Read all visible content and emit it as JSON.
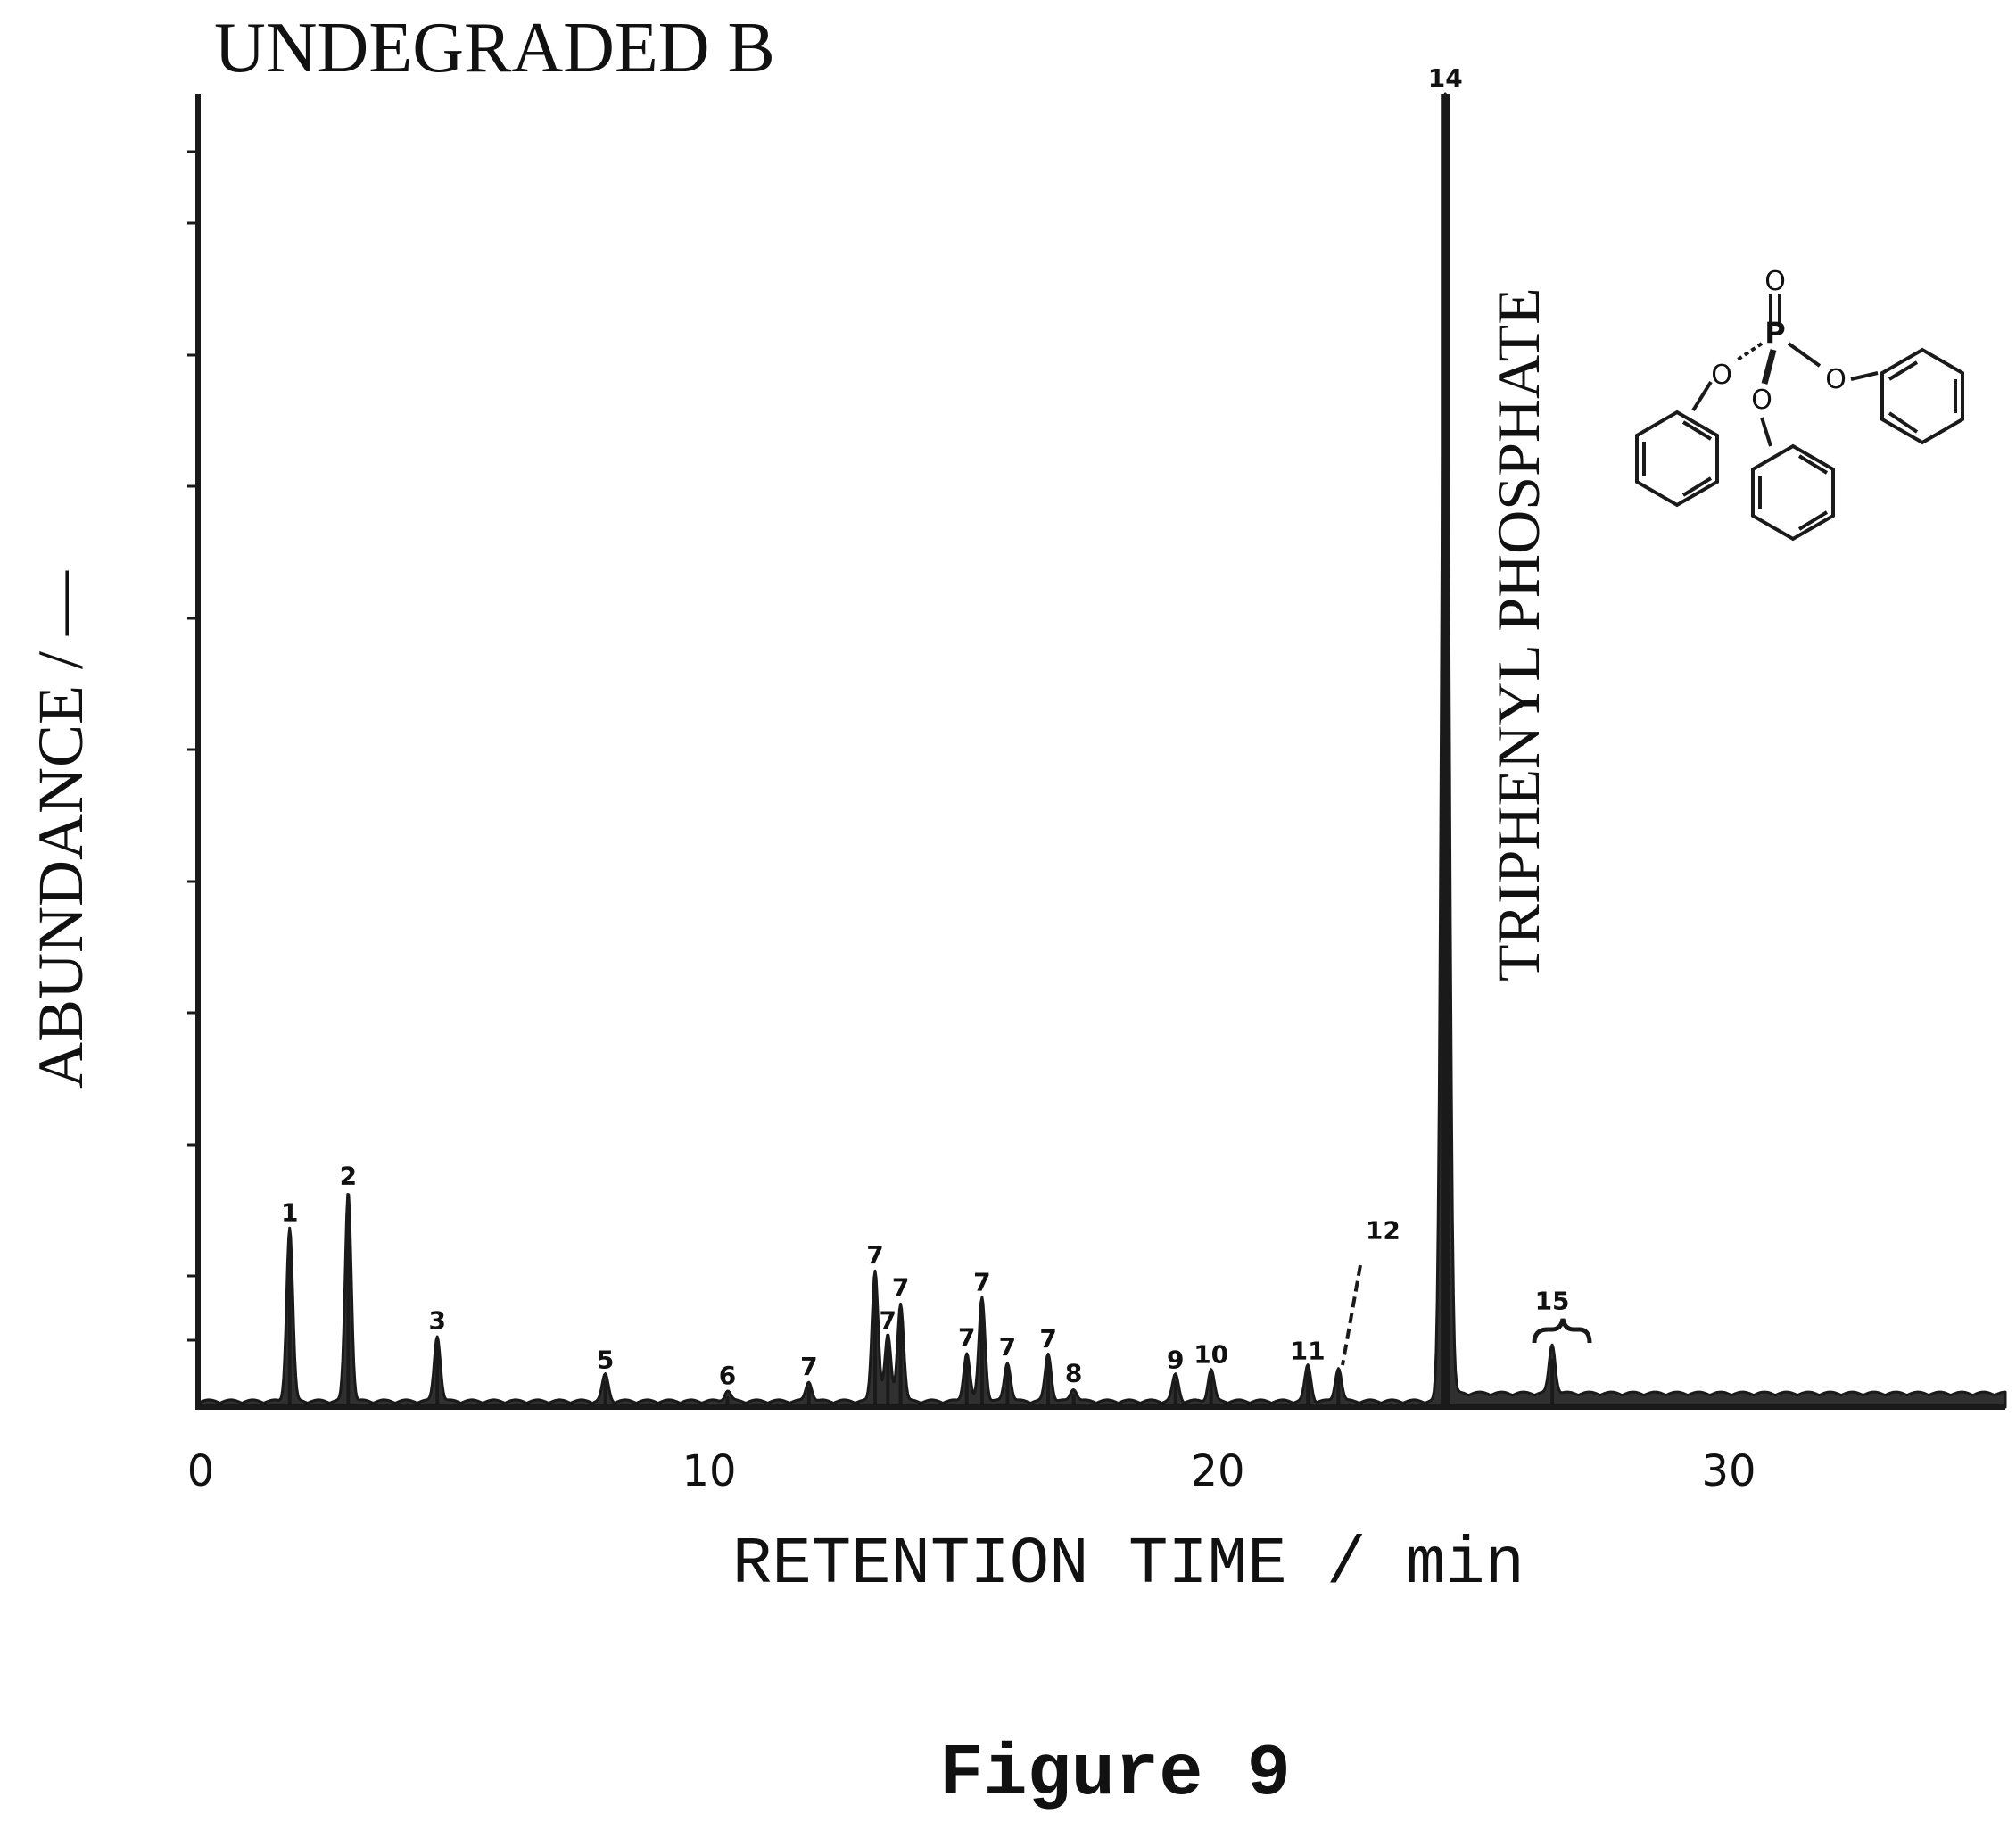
{
  "chart_data": {
    "type": "line",
    "title": "UNDEGRADED B",
    "xlabel": "RETENTION TIME / min",
    "ylabel": "ABUNDANCE / —",
    "xlim": [
      0,
      35.5
    ],
    "ylim": [
      0,
      100
    ],
    "x_ticks": [
      {
        "value": 0,
        "label": "0"
      },
      {
        "value": 10,
        "label": "10"
      },
      {
        "value": 20,
        "label": "20"
      },
      {
        "value": 30,
        "label": "30"
      }
    ],
    "grid": false,
    "legend": "none",
    "series_color": "#1a1a1a",
    "peaks": [
      {
        "label": "1",
        "x": 1.8,
        "y": 13.2
      },
      {
        "label": "2",
        "x": 2.95,
        "y": 16.0
      },
      {
        "label": "3",
        "x": 4.7,
        "y": 5.0
      },
      {
        "label": "5",
        "x": 8.0,
        "y": 2.0
      },
      {
        "label": "6",
        "x": 10.4,
        "y": 0.8
      },
      {
        "label": "7",
        "x": 12.0,
        "y": 1.5
      },
      {
        "label": "7",
        "x": 13.3,
        "y": 10.0
      },
      {
        "label": "7",
        "x": 13.55,
        "y": 5.0
      },
      {
        "label": "7",
        "x": 13.8,
        "y": 7.5
      },
      {
        "label": "7",
        "x": 15.1,
        "y": 3.7
      },
      {
        "label": "7",
        "x": 15.4,
        "y": 7.9
      },
      {
        "label": "7",
        "x": 15.9,
        "y": 3.0
      },
      {
        "label": "7",
        "x": 16.7,
        "y": 3.6
      },
      {
        "label": "8",
        "x": 17.2,
        "y": 1.0
      },
      {
        "label": "9",
        "x": 19.2,
        "y": 2.0
      },
      {
        "label": "10",
        "x": 19.9,
        "y": 2.4
      },
      {
        "label": "11",
        "x": 21.8,
        "y": 2.7
      },
      {
        "label": "12",
        "x": 22.4,
        "y": 2.6
      },
      {
        "label": "14",
        "x": 24.5,
        "y": 100
      },
      {
        "label": "15",
        "x": 26.6,
        "y": 3.7
      }
    ],
    "annotations": [
      "TRIPHENYL PHOSPHATE"
    ]
  },
  "molecule": {
    "atoms": [
      "O",
      "P",
      "O",
      "O",
      "O"
    ]
  },
  "caption": "Figure 9"
}
